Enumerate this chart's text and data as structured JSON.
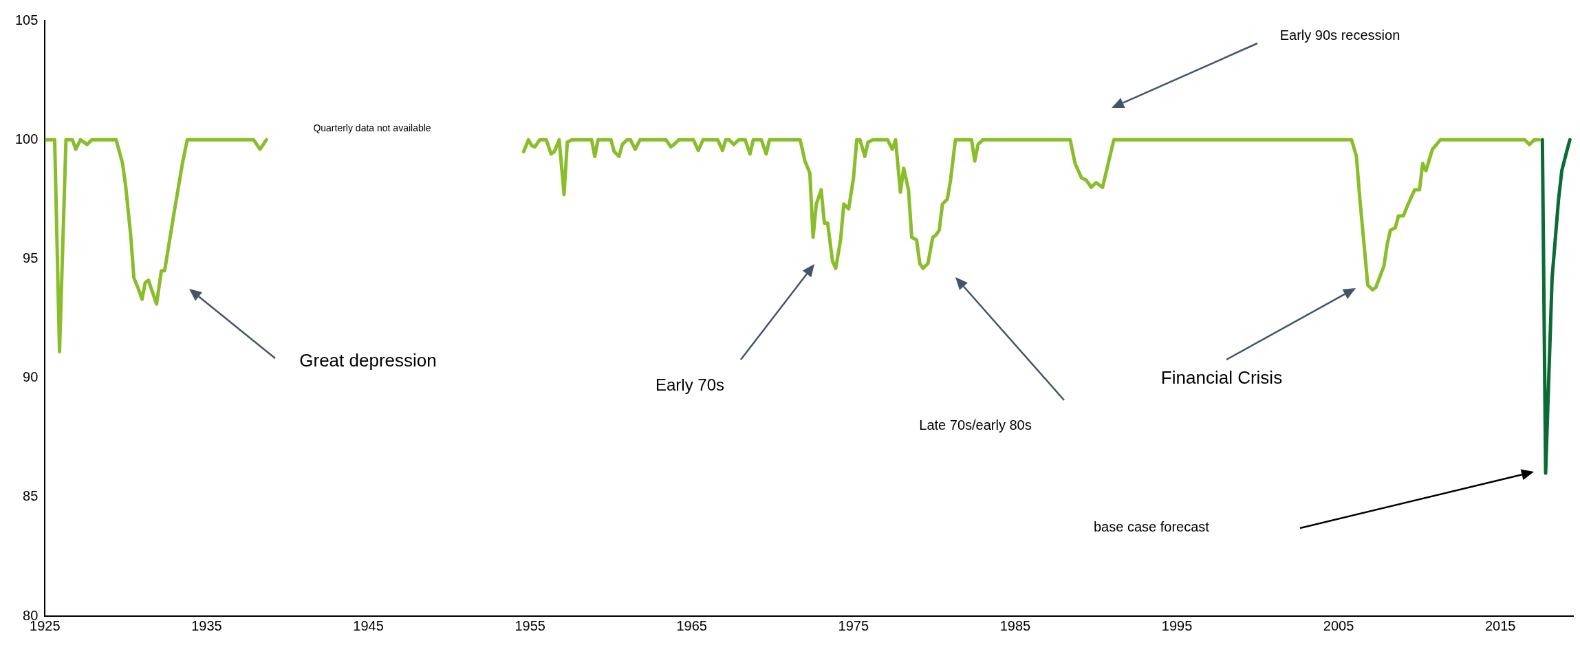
{
  "chart_data": {
    "type": "line",
    "xlim": [
      1925,
      2019.5
    ],
    "xticks": [
      1925,
      1935,
      1945,
      1955,
      1965,
      1975,
      1985,
      1995,
      2005,
      2015
    ],
    "ylim": [
      80,
      105
    ],
    "yticks": [
      80,
      85,
      90,
      95,
      100,
      105
    ],
    "series": [
      {
        "color": "#8abd2a",
        "x": [
          1925.0,
          1925.6,
          1925.9,
          1926.3,
          1926.7,
          1926.9,
          1927.2,
          1927.6,
          1927.9,
          1929.4,
          1929.8,
          1930.0,
          1930.3,
          1930.5,
          1930.8,
          1931.0,
          1931.2,
          1931.4,
          1931.9,
          1932.2,
          1932.4,
          1933.0,
          1933.5,
          1933.8,
          1937.9,
          1938.3,
          1938.7,
          1946.0,
          1954.6,
          1954.9,
          1955.1,
          1955.3,
          1955.6,
          1956.0,
          1956.3,
          1956.5,
          1956.8,
          1957.1,
          1957.3,
          1957.6,
          1958.8,
          1959.0,
          1959.2,
          1960.0,
          1960.2,
          1960.5,
          1960.7,
          1961.0,
          1961.2,
          1961.5,
          1961.8,
          1963.4,
          1963.7,
          1963.9,
          1964.2,
          1965.1,
          1965.4,
          1965.7,
          1966.6,
          1966.9,
          1967.1,
          1967.3,
          1967.6,
          1967.9,
          1968.3,
          1968.6,
          1968.8,
          1969.3,
          1969.6,
          1969.8,
          1971.7,
          1972.0,
          1972.3,
          1972.5,
          1972.7,
          1973.0,
          1973.2,
          1973.4,
          1973.7,
          1973.9,
          1974.2,
          1974.4,
          1974.7,
          1975.0,
          1975.2,
          1975.4,
          1975.7,
          1975.9,
          1976.2,
          1977.1,
          1977.4,
          1977.6,
          1977.9,
          1978.1,
          1978.4,
          1978.6,
          1978.9,
          1979.1,
          1979.3,
          1979.6,
          1979.9,
          1980.1,
          1980.3,
          1980.5,
          1980.8,
          1981.0,
          1981.3,
          1981.6,
          1982.3,
          1982.5,
          1982.7,
          1983.0,
          1988.4,
          1988.7,
          1989.1,
          1989.4,
          1989.7,
          1990.0,
          1990.4,
          1991.1,
          2005.8,
          2006.1,
          2006.3,
          2006.6,
          2006.8,
          2007.1,
          2007.3,
          2007.8,
          2008.0,
          2008.2,
          2008.5,
          2008.7,
          2009.0,
          2009.3,
          2009.7,
          2010.0,
          2010.2,
          2010.4,
          2010.8,
          2011.3,
          2016.5,
          2016.8,
          2017.1,
          2017.4
        ],
        "values": [
          100,
          100,
          91.1,
          100,
          100,
          99.6,
          100,
          99.8,
          100,
          100,
          99,
          98,
          96,
          94.2,
          93.7,
          93.3,
          94.0,
          94.1,
          93.1,
          94.5,
          94.5,
          97,
          99,
          100,
          100,
          99.6,
          100,
          null,
          99.5,
          100,
          99.75,
          99.7,
          100,
          100,
          99.4,
          99.5,
          100,
          97.7,
          99.9,
          100,
          100,
          99.3,
          100,
          100,
          99.5,
          99.3,
          99.8,
          100,
          100,
          99.6,
          100,
          100,
          99.7,
          99.8,
          100,
          100,
          99.55,
          100,
          100,
          99.55,
          100,
          100,
          99.8,
          100,
          100,
          99.4,
          100,
          100,
          99.4,
          100,
          100,
          99.1,
          98.6,
          95.9,
          97.3,
          97.9,
          96.5,
          96.5,
          94.9,
          94.6,
          95.8,
          97.3,
          97.1,
          98.4,
          100,
          100,
          99.3,
          99.9,
          100,
          100,
          99.6,
          100,
          97.8,
          98.8,
          97.9,
          95.9,
          95.8,
          94.8,
          94.6,
          94.8,
          95.9,
          96.0,
          96.2,
          97.3,
          97.5,
          98.3,
          100,
          100,
          100,
          99.1,
          99.8,
          100,
          100,
          99.0,
          98.4,
          98.3,
          98.0,
          98.2,
          98.0,
          100,
          100,
          99.3,
          97.6,
          95.4,
          93.9,
          93.7,
          93.8,
          94.7,
          95.6,
          96.2,
          96.3,
          96.8,
          96.8,
          97.3,
          97.9,
          97.9,
          99.0,
          98.7,
          99.6,
          100,
          100,
          99.8,
          100,
          100
        ]
      },
      {
        "color": "#0b6b35",
        "x": [
          2017.6,
          2017.8,
          2018.2,
          2018.6,
          2018.8,
          2019.1,
          2019.3
        ],
        "values": [
          100,
          86,
          94.2,
          97.5,
          98.7,
          99.5,
          100
        ]
      }
    ],
    "annotations": [
      "Great depression",
      "Early 70s",
      "Late 70s/early 80s",
      "Financial Crisis",
      "Early 90s recession",
      "base case forecast",
      "Quarterly data not available"
    ]
  }
}
